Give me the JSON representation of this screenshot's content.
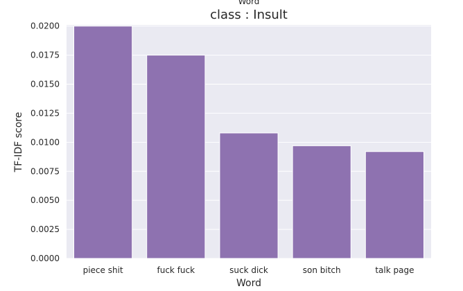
{
  "chart_data": {
    "type": "bar",
    "title": "class : Insult",
    "clipped_header": "Word",
    "xlabel": "Word",
    "ylabel": "TF-IDF score",
    "categories": [
      "piece shit",
      "fuck fuck",
      "suck dick",
      "son bitch",
      "talk page"
    ],
    "values": [
      0.02,
      0.0175,
      0.0108,
      0.0097,
      0.0092
    ],
    "ylim": [
      0,
      0.0201
    ],
    "yticks": [
      "0.0000",
      "0.0025",
      "0.0050",
      "0.0075",
      "0.0100",
      "0.0125",
      "0.0150",
      "0.0175",
      "0.0200"
    ],
    "ytick_values": [
      0,
      0.0025,
      0.005,
      0.0075,
      0.01,
      0.0125,
      0.015,
      0.0175,
      0.02
    ],
    "grid": true,
    "legend": "none",
    "colors": {
      "bar": "#8e72b0",
      "background": "#eaeaf2",
      "grid": "#ffffff"
    }
  }
}
